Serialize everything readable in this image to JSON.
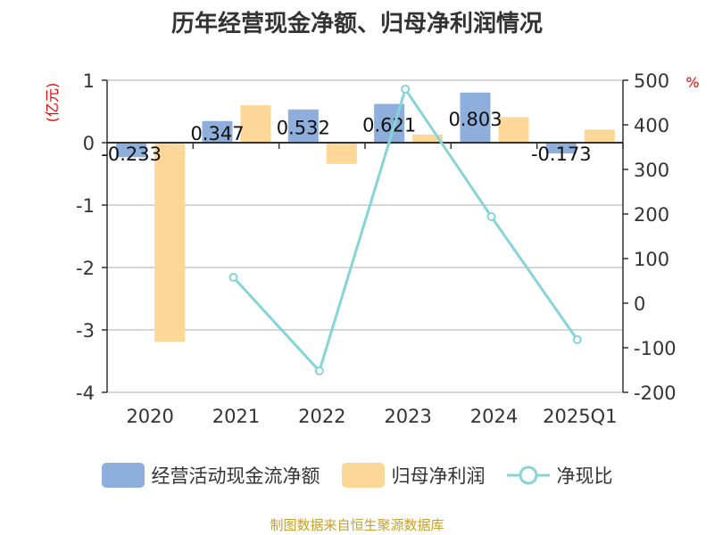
{
  "chart_data": {
    "type": "bar",
    "title": "历年经营现金净额、归母净利润情况",
    "categories": [
      "2020",
      "2021",
      "2022",
      "2023",
      "2024",
      "2025Q1"
    ],
    "ylabel": "(亿元)",
    "y2label": "%",
    "ylim": [
      -4,
      1
    ],
    "y2lim": [
      -200,
      500
    ],
    "yticks": [
      "1",
      "0",
      "-1",
      "-2",
      "-3",
      "-4"
    ],
    "y2ticks": [
      "500",
      "400",
      "300",
      "200",
      "100",
      "0",
      "-100",
      "-200"
    ],
    "series": [
      {
        "name": "经营活动现金流净额",
        "type": "bar",
        "axis": "left",
        "color": "#8eaedb",
        "values": [
          -0.233,
          0.347,
          0.532,
          0.621,
          0.803,
          -0.173
        ],
        "labels": [
          "-0.233",
          "0.347",
          "0.532",
          "0.621",
          "0.803",
          "-0.173"
        ]
      },
      {
        "name": "归母净利润",
        "type": "bar",
        "axis": "left",
        "color": "#fdd797",
        "values": [
          -3.19,
          0.6,
          -0.34,
          0.13,
          0.41,
          0.21
        ]
      },
      {
        "name": "净现比",
        "type": "line",
        "axis": "right",
        "color": "#86d4d8",
        "values": [
          null,
          58,
          -152,
          480,
          194,
          -82
        ]
      }
    ],
    "grid": true,
    "legend_position": "bottom"
  },
  "source": "制图数据来自恒生聚源数据库"
}
